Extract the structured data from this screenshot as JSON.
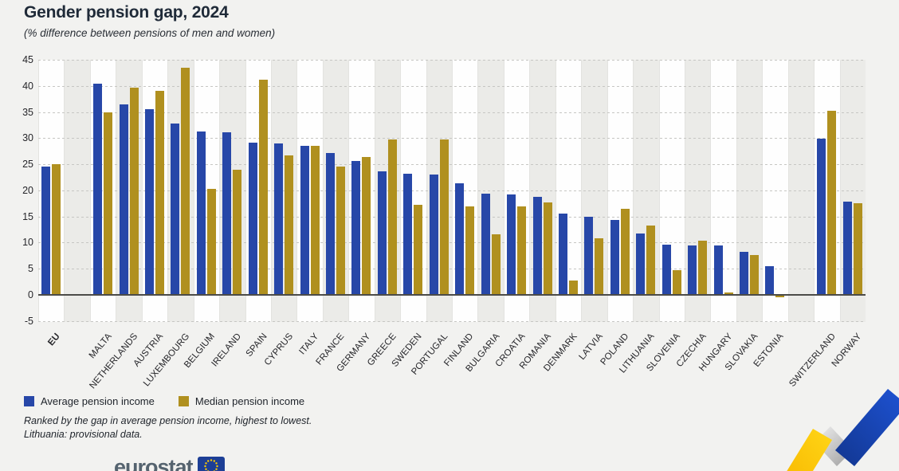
{
  "header": {
    "title": "Gender pension gap, 2024",
    "subtitle": "(% difference between pensions of men and women)"
  },
  "chart_data": {
    "type": "bar",
    "title": "Gender pension gap, 2024",
    "subtitle": "(% difference between pensions of men and women)",
    "unit": "%",
    "categories": [
      "EU",
      "",
      "MALTA",
      "NETHERLANDS",
      "AUSTRIA",
      "LUXEMBOURG",
      "BELGIUM",
      "IRELAND",
      "SPAIN",
      "CYPRUS",
      "ITALY",
      "FRANCE",
      "GERMANY",
      "GREECE",
      "SWEDEN",
      "PORTUGAL",
      "FINLAND",
      "BULGARIA",
      "CROATIA",
      "ROMANIA",
      "DENMARK",
      "LATVIA",
      "POLAND",
      "LITHUANIA",
      "SLOVENIA",
      "CZECHIA",
      "HUNGARY",
      "SLOVAKIA",
      "ESTONIA",
      "",
      "SWITZERLAND",
      "NORWAY"
    ],
    "emphasized_category": "EU",
    "series": [
      {
        "name": "Average pension income",
        "color": "#2747a8",
        "values": [
          24.5,
          null,
          40.4,
          36.4,
          35.6,
          32.8,
          31.3,
          31.1,
          29.1,
          29.0,
          28.6,
          27.2,
          25.7,
          23.7,
          23.2,
          23.1,
          21.3,
          19.4,
          19.2,
          18.8,
          15.6,
          14.9,
          14.4,
          11.8,
          9.6,
          9.4,
          9.4,
          8.2,
          5.5,
          null,
          29.9,
          17.9
        ]
      },
      {
        "name": "Median pension income",
        "color": "#b0901f",
        "values": [
          25.0,
          null,
          35.0,
          39.7,
          39.0,
          43.4,
          20.3,
          24.0,
          41.2,
          26.7,
          28.5,
          24.5,
          26.4,
          29.8,
          17.2,
          29.7,
          17.0,
          11.6,
          16.9,
          17.7,
          2.8,
          10.9,
          16.5,
          13.3,
          4.8,
          10.3,
          0.4,
          7.7,
          -0.4,
          null,
          35.2,
          17.5
        ]
      }
    ],
    "ylim": [
      -5,
      45
    ],
    "ytick_step": 5,
    "grid": "dashed horizontal gridlines, alternating vertical column bands",
    "legend_position": "bottom-left"
  },
  "footnotes": {
    "line1": "Ranked by the gap in average pension income, highest to lowest.",
    "line2": "Lithuania: provisional data."
  },
  "logo": {
    "text": "eurostat"
  }
}
